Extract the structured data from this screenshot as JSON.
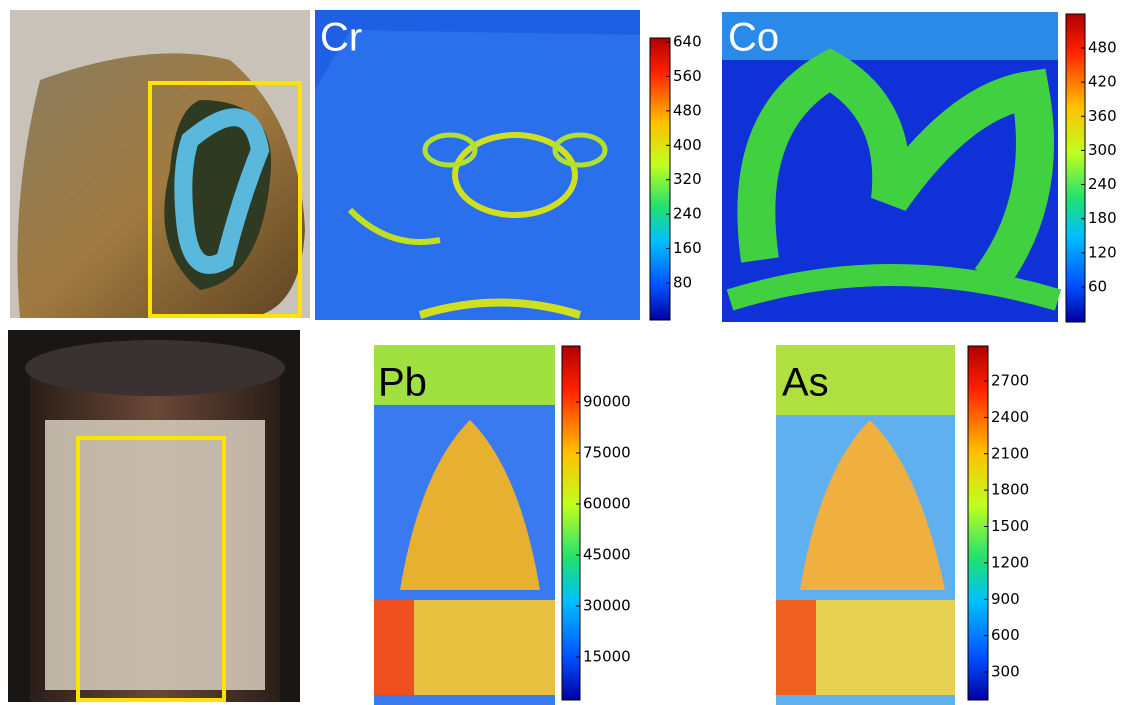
{
  "panels": [
    {
      "label": "Cr",
      "ticks": [
        640,
        560,
        480,
        400,
        320,
        240,
        160,
        80
      ]
    },
    {
      "label": "Co",
      "ticks": [
        480,
        420,
        360,
        300,
        240,
        180,
        120,
        60
      ]
    },
    {
      "label": "Pb",
      "ticks": [
        90000,
        75000,
        60000,
        45000,
        30000,
        15000
      ]
    },
    {
      "label": "As",
      "ticks": [
        2700,
        2400,
        2100,
        1800,
        1500,
        1200,
        900,
        600,
        300
      ]
    }
  ]
}
